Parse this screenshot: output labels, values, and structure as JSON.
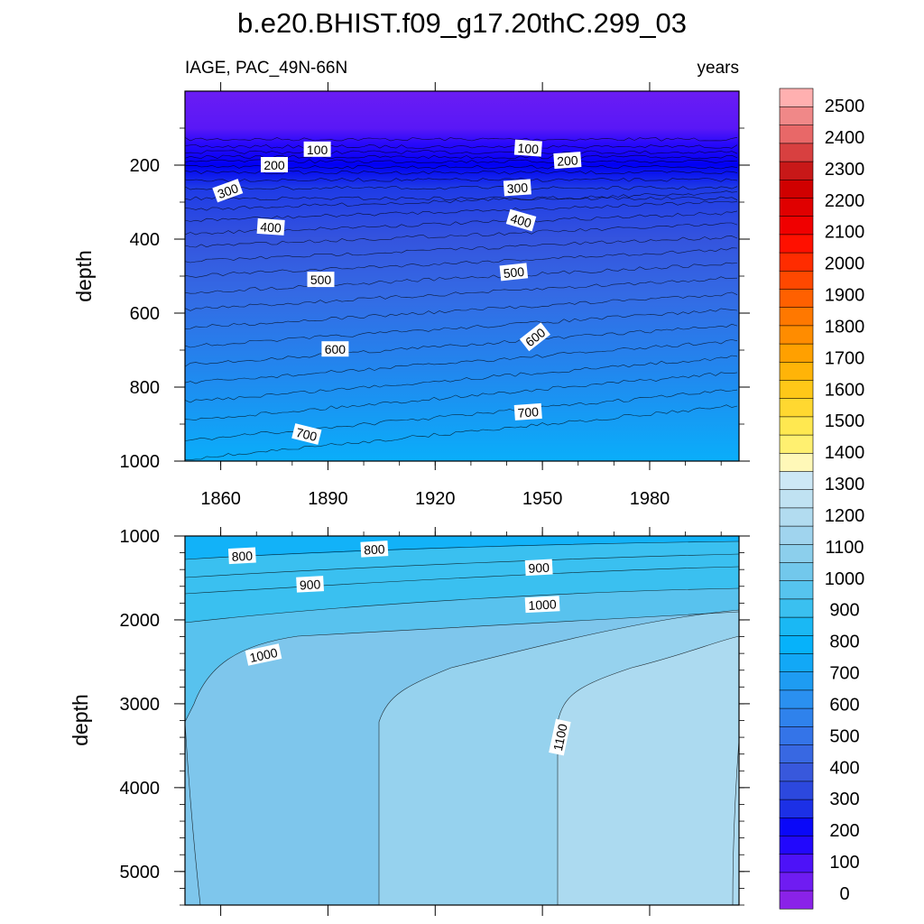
{
  "title": "b.e20.BHIST.f09_g17.20thC.299_03",
  "left_string": "IAGE, PAC_49N-66N",
  "right_string": "years",
  "chart_data": [
    {
      "type": "contour",
      "panel": "upper",
      "variable": "IAGE",
      "region": "PAC_49N-66N",
      "units": "years",
      "xlabel": "",
      "ylabel": "depth",
      "xlim": [
        1850,
        2005
      ],
      "ylim": [
        0,
        1000
      ],
      "y_reversed": true,
      "x_ticks": [
        1860,
        1890,
        1920,
        1950,
        1980
      ],
      "y_ticks": [
        200,
        400,
        600,
        800,
        1000
      ],
      "contour_labels": [
        {
          "text": "100",
          "x": 1887,
          "y": 158
        },
        {
          "text": "200",
          "x": 1875,
          "y": 200
        },
        {
          "text": "300",
          "x": 1862,
          "y": 270
        },
        {
          "text": "100",
          "x": 1946,
          "y": 155
        },
        {
          "text": "200",
          "x": 1957,
          "y": 188
        },
        {
          "text": "300",
          "x": 1943,
          "y": 262
        },
        {
          "text": "400",
          "x": 1874,
          "y": 368
        },
        {
          "text": "400",
          "x": 1944,
          "y": 350
        },
        {
          "text": "500",
          "x": 1888,
          "y": 510
        },
        {
          "text": "500",
          "x": 1942,
          "y": 490
        },
        {
          "text": "600",
          "x": 1892,
          "y": 698
        },
        {
          "text": "600",
          "x": 1948,
          "y": 665
        },
        {
          "text": "700",
          "x": 1884,
          "y": 928
        },
        {
          "text": "700",
          "x": 1946,
          "y": 868
        }
      ]
    },
    {
      "type": "contour",
      "panel": "lower",
      "variable": "IAGE",
      "units": "years",
      "xlabel": "",
      "ylabel": "depth",
      "xlim": [
        1850,
        2005
      ],
      "ylim": [
        1000,
        5400
      ],
      "y_reversed": true,
      "y_ticks": [
        1000,
        2000,
        3000,
        4000,
        5000
      ],
      "contour_labels": [
        {
          "text": "800",
          "x": 1866,
          "y": 1240
        },
        {
          "text": "800",
          "x": 1903,
          "y": 1160
        },
        {
          "text": "900",
          "x": 1885,
          "y": 1580
        },
        {
          "text": "900",
          "x": 1949,
          "y": 1380
        },
        {
          "text": "1000",
          "x": 1872,
          "y": 2420
        },
        {
          "text": "1000",
          "x": 1950,
          "y": 1820
        },
        {
          "text": "1100",
          "x": 1955,
          "y": 3400
        }
      ]
    }
  ],
  "colorbar": {
    "levels": [
      0,
      100,
      200,
      300,
      400,
      500,
      600,
      700,
      800,
      900,
      1000,
      1100,
      1200,
      1300,
      1400,
      1500,
      1600,
      1700,
      1800,
      1900,
      2000,
      2100,
      2200,
      2300,
      2400,
      2500
    ],
    "labels": [
      "0",
      "100",
      "200",
      "300",
      "400",
      "500",
      "600",
      "700",
      "800",
      "900",
      "1000",
      "1100",
      "1200",
      "1300",
      "1400",
      "1500",
      "1600",
      "1700",
      "1800",
      "1900",
      "2000",
      "2100",
      "2200",
      "2300",
      "2400",
      "2500"
    ],
    "colors": [
      "#8a22e8",
      "#6f1cf2",
      "#4d12f8",
      "#2208fc",
      "#0a08f8",
      "#1c30e6",
      "#2c48de",
      "#3858dc",
      "#3868e2",
      "#3474e8",
      "#2f82ec",
      "#2a90f0",
      "#1e9cf2",
      "#12a8f6",
      "#06b2fa",
      "#1ab8f4",
      "#3ac0f0",
      "#56c4ee",
      "#72c8ec",
      "#8ccfec",
      "#a0d4ee",
      "#b2dcf0",
      "#c0e2f2",
      "#cde8f5",
      "#fff8b8",
      "#fff070",
      "#ffe850",
      "#ffd830",
      "#ffc818",
      "#ffb408",
      "#ffa000",
      "#ff8c00",
      "#ff7800",
      "#ff6000",
      "#ff4800",
      "#ff2c00",
      "#ff1000",
      "#f00000",
      "#e00000",
      "#d00000",
      "#c81818",
      "#d84040",
      "#e86868",
      "#f08888",
      "#ffb0b0"
    ]
  }
}
